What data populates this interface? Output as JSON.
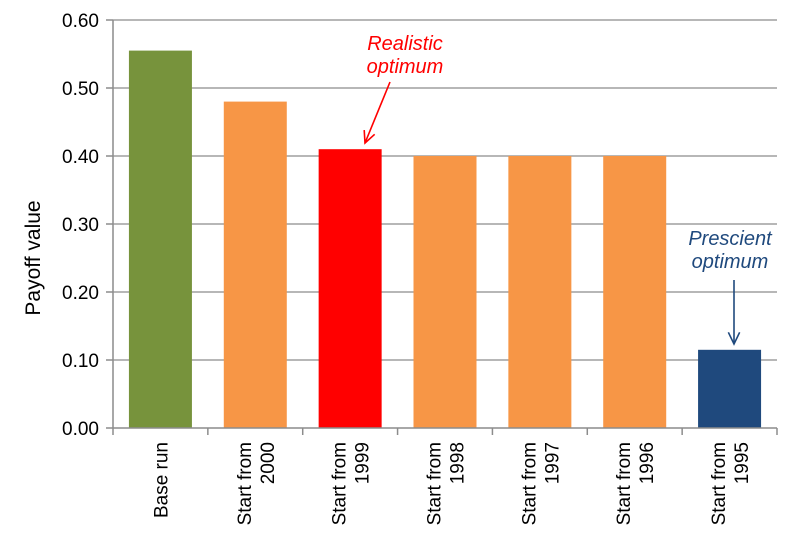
{
  "chart_data": {
    "type": "bar",
    "title": "",
    "xlabel": "",
    "ylabel": "Payoff value",
    "ylim": [
      0,
      0.6
    ],
    "yticks": [
      "0.00",
      "0.10",
      "0.20",
      "0.30",
      "0.40",
      "0.50",
      "0.60"
    ],
    "grid": true,
    "categories": [
      [
        "Base run"
      ],
      [
        "Start from",
        "2000"
      ],
      [
        "Start from",
        "1999"
      ],
      [
        "Start from",
        "1998"
      ],
      [
        "Start from",
        "1997"
      ],
      [
        "Start from",
        "1996"
      ],
      [
        "Start from",
        "1995"
      ]
    ],
    "values": [
      0.555,
      0.48,
      0.41,
      0.4,
      0.4,
      0.4,
      0.115
    ],
    "colors": [
      "#77933c",
      "#f79646",
      "#ff0000",
      "#f79646",
      "#f79646",
      "#f79646",
      "#1f497d"
    ],
    "annotations": [
      {
        "lines": [
          "Realistic",
          "optimum"
        ],
        "color": "#ff0000",
        "target_index": 2
      },
      {
        "lines": [
          "Prescient",
          "optimum"
        ],
        "color": "#1f497d",
        "target_index": 6
      }
    ]
  }
}
